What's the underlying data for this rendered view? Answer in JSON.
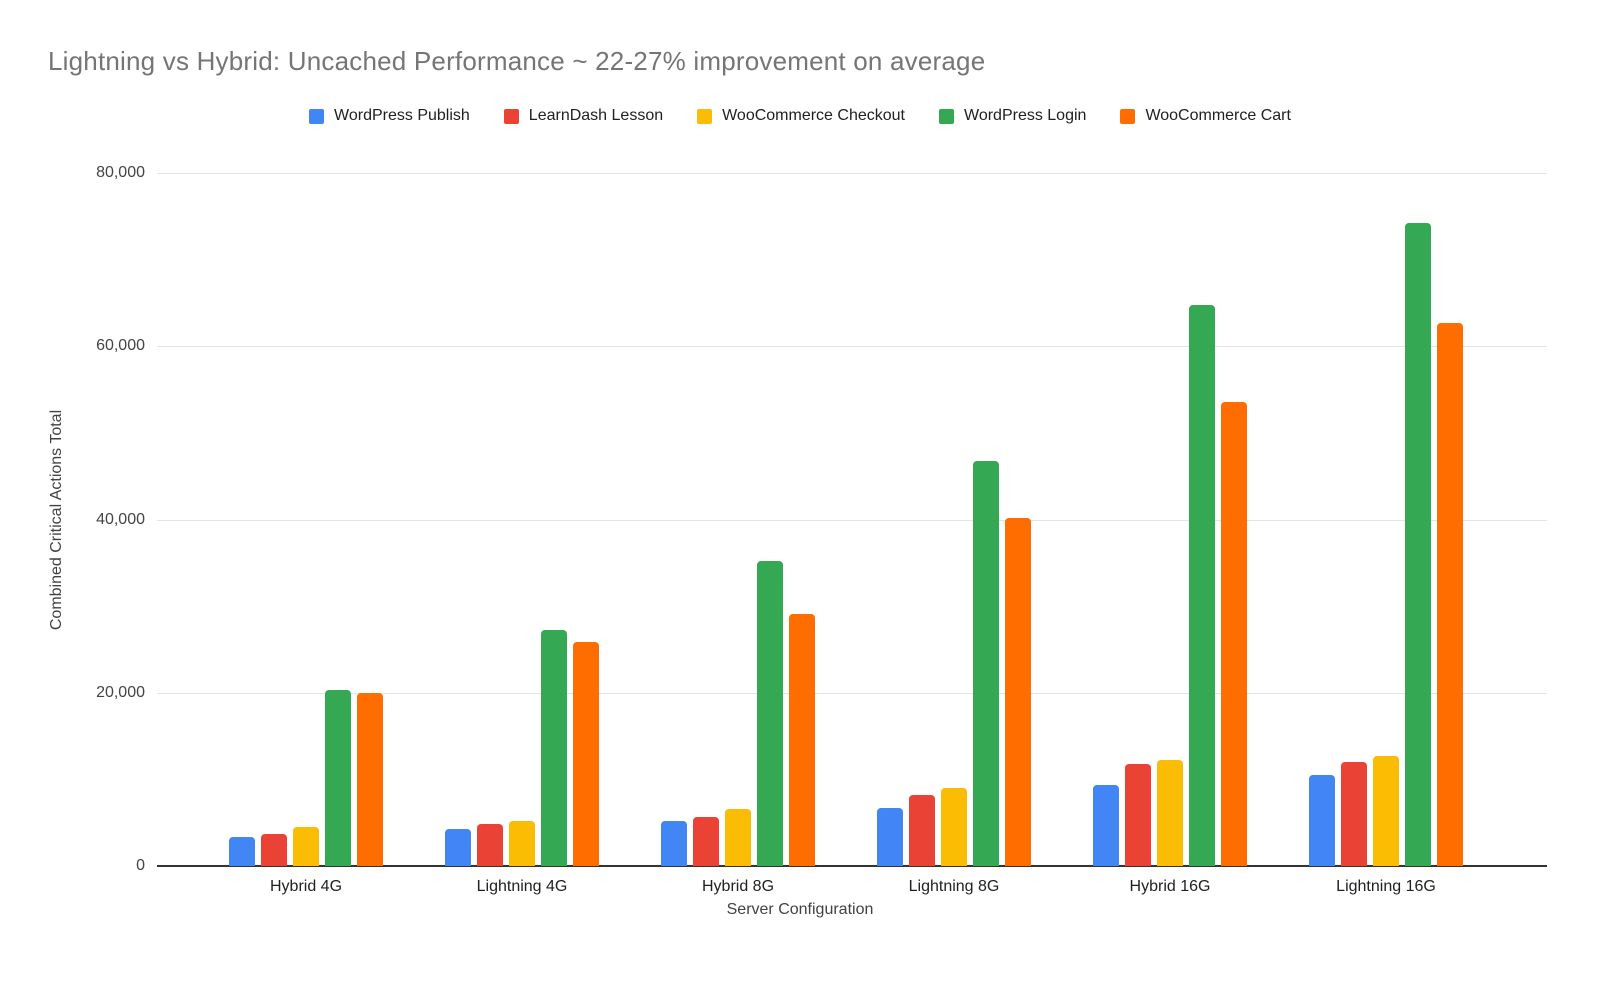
{
  "chart_data": {
    "type": "bar",
    "title": "Lightning vs Hybrid: Uncached Performance ~ 22-27% improvement on average",
    "xlabel": "Server Configuration",
    "ylabel": "Combined Critical Actions Total",
    "ylim": [
      0,
      80000
    ],
    "ytick_step": 20000,
    "yticks": [
      0,
      20000,
      40000,
      60000,
      80000
    ],
    "grid": true,
    "legend_position": "top",
    "categories": [
      "Hybrid 4G",
      "Lightning 4G",
      "Hybrid 8G",
      "Lightning 8G",
      "Hybrid 16G",
      "Lightning 16G"
    ],
    "series": [
      {
        "name": "WordPress Publish",
        "color": "#4285F4",
        "values": [
          3300,
          4250,
          5150,
          6650,
          9300,
          10450
        ]
      },
      {
        "name": "LearnDash Lesson",
        "color": "#EA4335",
        "values": [
          3700,
          4900,
          5700,
          8250,
          11800,
          12050
        ]
      },
      {
        "name": "WooCommerce Checkout",
        "color": "#FBBC04",
        "values": [
          4450,
          5200,
          6550,
          9050,
          12200,
          12750
        ]
      },
      {
        "name": "WordPress Login",
        "color": "#34A853",
        "values": [
          20300,
          27300,
          35250,
          46700,
          64800,
          74200
        ]
      },
      {
        "name": "WooCommerce Cart",
        "color": "#FF6D01",
        "values": [
          20000,
          25900,
          29100,
          40200,
          53550,
          62700
        ]
      }
    ]
  },
  "colors": {
    "title_text": "#757575",
    "axis_text": "#424242",
    "tick_text": "#444444",
    "gridline": "#e3e3e3",
    "baseline": "#333333",
    "background": "#ffffff"
  }
}
